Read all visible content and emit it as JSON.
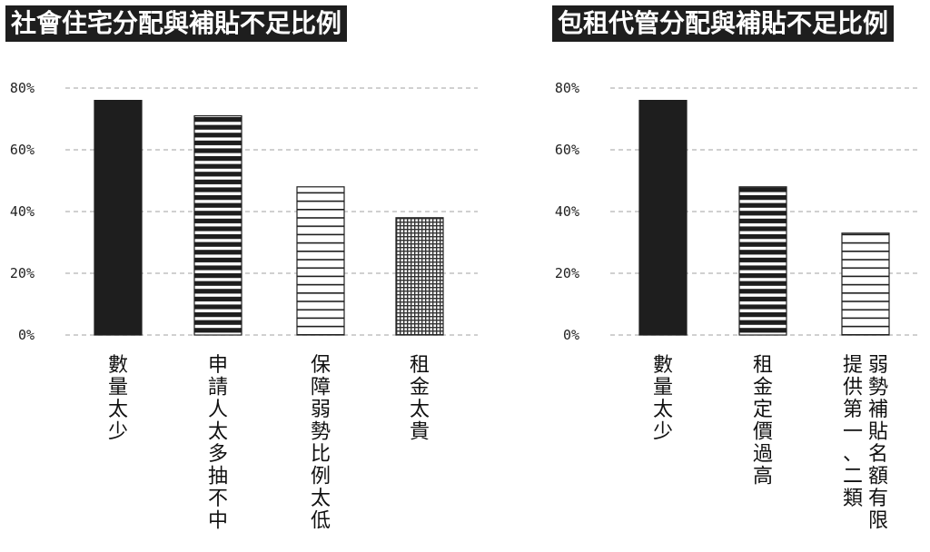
{
  "chart_data": [
    {
      "type": "bar",
      "title": "社會住宅分配與補貼不足比例",
      "categories": [
        "數量太少",
        "申請人太多抽不中",
        "保障弱勢比例太低",
        "租金太貴"
      ],
      "category_lines": [
        [
          "數量太少"
        ],
        [
          "申請人太多抽不中"
        ],
        [
          "保障弱勢比例太低"
        ],
        [
          "租金太貴"
        ]
      ],
      "values": [
        76,
        71,
        48,
        38
      ],
      "patterns": [
        "solid",
        "horizontal-thick",
        "horizontal-thin",
        "grid"
      ],
      "yticks": [
        0,
        20,
        40,
        60,
        80
      ],
      "ytick_labels": [
        "0%",
        "20%",
        "40%",
        "60%",
        "80%"
      ],
      "ylim": [
        0,
        80
      ],
      "grid": true,
      "xlabel": "",
      "ylabel": ""
    },
    {
      "type": "bar",
      "title": "包租代管分配與補貼不足比例",
      "categories": [
        "數量太少",
        "租金定價過高",
        "弱勢補貼名額有限、提供第一、二類"
      ],
      "category_lines": [
        [
          "數量太少"
        ],
        [
          "租金定價過高"
        ],
        [
          "弱勢補貼名額有限",
          "提供第一、二類"
        ]
      ],
      "values": [
        76,
        48,
        33
      ],
      "patterns": [
        "solid",
        "horizontal-thick",
        "horizontal-thin"
      ],
      "yticks": [
        0,
        20,
        40,
        60,
        80
      ],
      "ytick_labels": [
        "0%",
        "20%",
        "40%",
        "60%",
        "80%"
      ],
      "ylim": [
        0,
        80
      ],
      "grid": true,
      "xlabel": "",
      "ylabel": ""
    }
  ]
}
